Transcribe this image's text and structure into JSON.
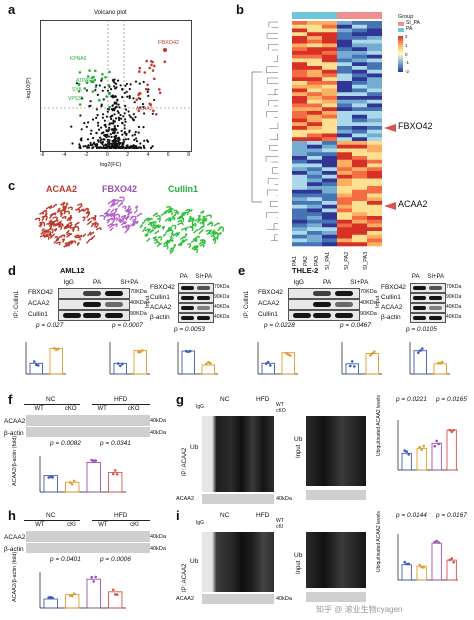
{
  "panels": {
    "a": "a",
    "b": "b",
    "c": "c",
    "d": "d",
    "e": "e",
    "f": "f",
    "g": "g",
    "h": "h",
    "i": "i"
  },
  "volcano": {
    "title": "Volcano plot",
    "xlabel": "log2(FC)",
    "ylabel": "-log10(P)",
    "x_ticks": [
      "-6",
      "-4",
      "-2",
      "0",
      "2",
      "4",
      "6",
      "8"
    ],
    "labels": [
      "FBXO42",
      "KPNA6",
      "ACAA2",
      "ATPAF1",
      "SYK",
      "VPS35"
    ]
  },
  "heatmap": {
    "legend_title": "Group",
    "legend_groups": [
      "SI_PA",
      "PA"
    ],
    "scale": [
      "2",
      "1",
      "0",
      "-1",
      "-2"
    ],
    "marks": [
      "FBXO42",
      "ACAA2"
    ],
    "col_labels": [
      "PA1",
      "PA2",
      "PA3",
      "SI_PA1",
      "SI_PA2",
      "SI_PA3"
    ]
  },
  "structure": {
    "labels": [
      "ACAA2",
      "FBXO42",
      "Cullin1"
    ]
  },
  "d": {
    "cell": "AML12",
    "ip_label": "IP: Cullin1",
    "input_label": "Input",
    "lanes": [
      "IgG",
      "PA",
      "SI+PA"
    ],
    "lanes_input": [
      "PA",
      "SI+PA"
    ],
    "rows": [
      "FBXO42",
      "ACAA2",
      "Cullin1"
    ],
    "rows_input": [
      "FBXO42",
      "Cullin1",
      "ACAA2",
      "β-actin"
    ],
    "kda": [
      "70KDa",
      "40KDa",
      "90KDa"
    ],
    "kda_input": [
      "70KDa",
      "90KDa",
      "40KDa",
      "40KDa"
    ],
    "pvals": [
      "p = 0.027",
      "p = 0.0007",
      "p = 0.0053"
    ],
    "ylabels": [
      "FBXO42/Cullin1 (fold change)",
      "ACAA2/Cullin1 (fold change)",
      "ACAA2/β-actin (fold)"
    ],
    "groups": [
      "PA",
      "SI+PA"
    ]
  },
  "e": {
    "cell": "THLE-2",
    "ip_label": "IP: Cullin1",
    "input_label": "Input",
    "lanes": [
      "IgG",
      "PA",
      "SI+PA"
    ],
    "lanes_input": [
      "PA",
      "SI+PA"
    ],
    "rows": [
      "FBXO42",
      "ACAA2",
      "Cullin1"
    ],
    "rows_input": [
      "FBXO42",
      "Cullin1",
      "ACAA2",
      "β-actin"
    ],
    "kda": [
      "70KDa",
      "40KDa",
      "90KDa"
    ],
    "kda_input": [
      "70KDa",
      "90KDa",
      "40KDa",
      "40KDa"
    ],
    "pvals": [
      "p = 0.0228",
      "p = 0.0467",
      "p = 0.0105"
    ],
    "ylabels": [
      "FBXO42/Cullin1 (fold change)",
      "ACAA2/Cullin1 (fold change)",
      "ACAA2/β-actin (fold)"
    ],
    "groups": [
      "PA",
      "SI+PA"
    ]
  },
  "f": {
    "conds": [
      "NC",
      "HFD"
    ],
    "lanes": [
      "WT",
      "cKO",
      "WT",
      "cKO"
    ],
    "rows": [
      "ACAA2",
      "β-actin"
    ],
    "kda": [
      "40kDa",
      "40kDa"
    ],
    "pvals": [
      "p = 0.0082",
      "p = 0.0341"
    ],
    "ylabel": "ACAA2/β-actin (fold)",
    "groups": [
      "WT",
      "cKO",
      "WT+HFD",
      "cKO+HFD"
    ]
  },
  "g": {
    "ip_label": "IP: ACAA2",
    "input_label": "Input",
    "conds": [
      "NC",
      "HFD"
    ],
    "rowlabels": [
      "IgG",
      "WT",
      "cKO"
    ],
    "signs": [
      [
        "+",
        "-",
        "-",
        "-",
        "-"
      ],
      [
        "-",
        "+",
        "-",
        "+",
        "-"
      ],
      [
        "-",
        "-",
        "+",
        "-",
        "+"
      ]
    ],
    "signs_input": [
      [
        "+",
        "-",
        "+",
        "-"
      ],
      [
        "-",
        "+",
        "-",
        "+"
      ]
    ],
    "ub": "Ub",
    "acaa2": "ACAA2",
    "kda": "40kDa",
    "pvals": [
      "p = 0.0221",
      "p = 0.0165"
    ],
    "ylabel": "Ubiquitinated ACAA2 levels",
    "groups": [
      "WT",
      "cKO",
      "WT+HFD",
      "cKO+HFD"
    ]
  },
  "h": {
    "conds": [
      "NC",
      "HFD"
    ],
    "lanes": [
      "WT",
      "cKI",
      "WT",
      "cKI"
    ],
    "rows": [
      "ACAA2",
      "β-actin"
    ],
    "kda": [
      "40kDa",
      "40kDa"
    ],
    "pvals": [
      "p = 0.0401",
      "p = 0.0006"
    ],
    "ylabel": "ACAA2/β-actin (fold)",
    "groups": [
      "WT",
      "cKI",
      "WT+HFD",
      "cKI+HFD"
    ]
  },
  "i": {
    "ip_label": "IP: ACAA2",
    "input_label": "Input",
    "conds": [
      "NC",
      "HFD"
    ],
    "rowlabels": [
      "IgG",
      "WT",
      "cKI"
    ],
    "ub": "Ub",
    "acaa2": "ACAA2",
    "kda": "40kDa",
    "pvals": [
      "p = 0.0144",
      "p = 0.0167"
    ],
    "ylabel": "Ubiquitinated ACAA2 levels",
    "groups": [
      "WT",
      "cKI",
      "WT+HFD",
      "cKI+HFD"
    ]
  },
  "watermark": "知乎 @ 滚业生物cyagen",
  "colors": {
    "red": "#c0392b",
    "green": "#27ae3c",
    "black": "#111111",
    "orange": "#e39b2b",
    "blue": "#3b5fb5",
    "purple": "#9b4fb0"
  }
}
